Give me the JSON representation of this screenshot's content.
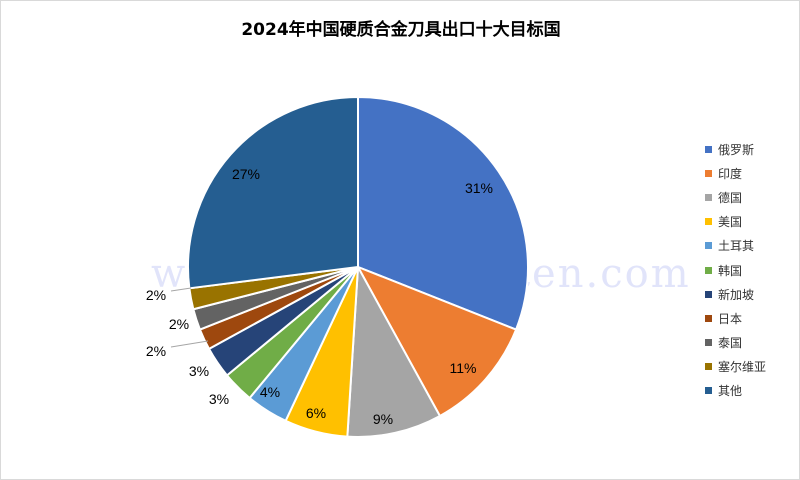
{
  "chart_data": {
    "type": "pie",
    "title": "2024年中国硬质合金刀具出口十大目标国",
    "categories": [
      "俄罗斯",
      "印度",
      "德国",
      "美国",
      "土耳其",
      "韩国",
      "新加坡",
      "日本",
      "泰国",
      "塞尔维亚",
      "其他"
    ],
    "values": [
      31,
      11,
      9,
      6,
      4,
      3,
      3,
      2,
      2,
      2,
      27
    ],
    "labels": [
      "31%",
      "11%",
      "9%",
      "6%",
      "4%",
      "3%",
      "3%",
      "2%",
      "2%",
      "2%",
      "27%"
    ],
    "colors": [
      "#4472C4",
      "#ED7D31",
      "#A5A5A5",
      "#FFC000",
      "#5B9BD5",
      "#70AD47",
      "#264478",
      "#9E480E",
      "#636363",
      "#997300",
      "#255E91"
    ],
    "legend_position": "right",
    "start_angle": "12 o'clock, clockwise"
  },
  "watermark": "www.chinatungsten.com"
}
